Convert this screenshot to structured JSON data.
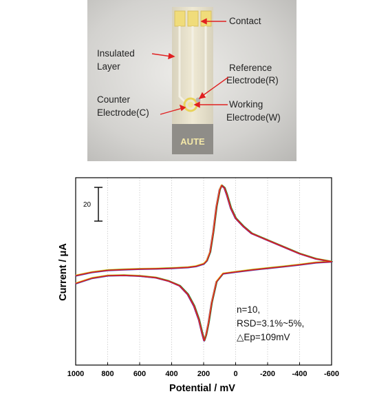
{
  "figure_top": {
    "labels": {
      "contact": "Contact",
      "insulated": [
        "Insulated",
        "Layer"
      ],
      "reference": [
        "Reference",
        "Electrode(R)"
      ],
      "counter": [
        "Counter",
        "Electrode(C)"
      ],
      "working": [
        "Working",
        "Electrode(W)"
      ],
      "brand": "AUTE"
    }
  },
  "chart_data": {
    "type": "line",
    "xlabel": "Potential / mV",
    "ylabel": "Current / μA",
    "xlim": [
      1000,
      -600
    ],
    "x_ticks": [
      1000,
      800,
      600,
      400,
      200,
      0,
      -200,
      -400,
      -600
    ],
    "x_tick_labels": [
      "1000",
      "800",
      "600",
      "400",
      "200",
      "0",
      "-200",
      "-400",
      "-600"
    ],
    "scale_bar": {
      "label": "20",
      "value": 20
    },
    "grid": "vertical dotted",
    "annotation": [
      "n=10,",
      "RSD=3.1%~5%,",
      "△Ep=109mV"
    ],
    "series_colors": [
      "#1f3fd0",
      "#7a1f8a",
      "#e8e03a",
      "#2a8a3a",
      "#e02020"
    ],
    "cv_cycle": {
      "forward": [
        [
          1000,
          -0.6
        ],
        [
          900,
          2.5
        ],
        [
          800,
          4.0
        ],
        [
          700,
          4.2
        ],
        [
          600,
          3.8
        ],
        [
          500,
          2.8
        ],
        [
          420,
          0.8
        ],
        [
          350,
          -2.0
        ],
        [
          300,
          -7.0
        ],
        [
          260,
          -14.0
        ],
        [
          230,
          -22.0
        ],
        [
          210,
          -30.0
        ],
        [
          197,
          -34.5
        ],
        [
          185,
          -31.0
        ],
        [
          170,
          -24.0
        ],
        [
          150,
          -12.0
        ],
        [
          120,
          0.5
        ],
        [
          80,
          5.2
        ],
        [
          0,
          6.2
        ],
        [
          -100,
          7.4
        ],
        [
          -200,
          8.4
        ],
        [
          -300,
          9.4
        ],
        [
          -400,
          10.5
        ],
        [
          -500,
          11.7
        ],
        [
          -600,
          12.3
        ]
      ],
      "reverse": [
        [
          -600,
          12.3
        ],
        [
          -500,
          14.0
        ],
        [
          -400,
          17.0
        ],
        [
          -300,
          21.0
        ],
        [
          -200,
          25.0
        ],
        [
          -100,
          29.0
        ],
        [
          -50,
          33.0
        ],
        [
          0,
          38.0
        ],
        [
          30,
          44.0
        ],
        [
          55,
          52.0
        ],
        [
          70,
          56.0
        ],
        [
          88,
          57.5
        ],
        [
          100,
          55.0
        ],
        [
          120,
          45.0
        ],
        [
          140,
          30.0
        ],
        [
          160,
          18.0
        ],
        [
          180,
          13.0
        ],
        [
          200,
          11.0
        ],
        [
          250,
          9.5
        ],
        [
          300,
          8.9
        ],
        [
          400,
          8.4
        ],
        [
          500,
          8.1
        ],
        [
          600,
          7.9
        ],
        [
          700,
          7.6
        ],
        [
          800,
          7.2
        ],
        [
          900,
          6.0
        ],
        [
          1000,
          4.0
        ]
      ]
    }
  }
}
